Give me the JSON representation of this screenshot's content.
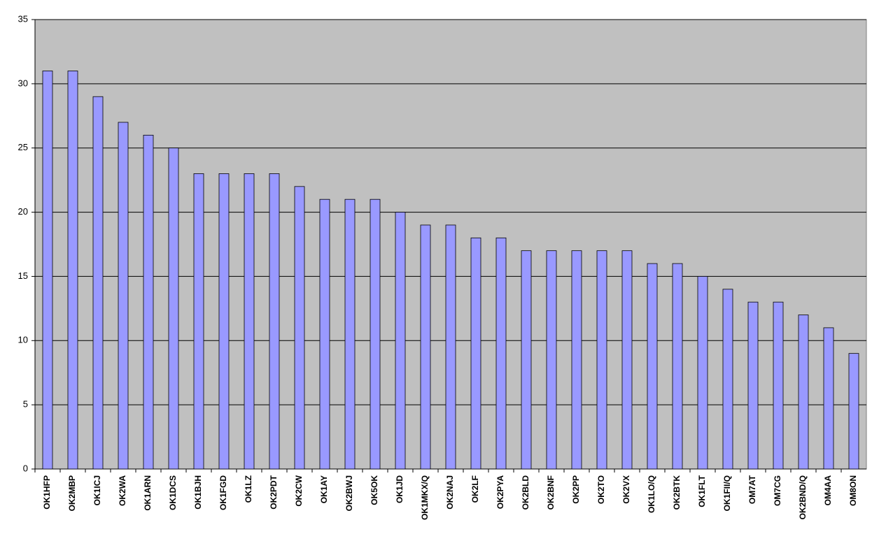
{
  "chart_data": {
    "type": "bar",
    "categories": [
      "OK1HFP",
      "OK2MBP",
      "OK1ICJ",
      "OK2WA",
      "OK1ARN",
      "OK1DCS",
      "OK1BJH",
      "OK1FGD",
      "OK1LZ",
      "OK2PDT",
      "OK2CW",
      "OK1AY",
      "OK2BWJ",
      "OK5OK",
      "OK1JD",
      "OK1MKX/Q",
      "OK2NAJ",
      "OK2LF",
      "OK2PYA",
      "OK2BLD",
      "OK2BNF",
      "OK2PP",
      "OK2TO",
      "OK2VX",
      "OK1LO/Q",
      "OK2BTK",
      "OK1FLT",
      "OK1FII/Q",
      "OM7AT",
      "OM7CG",
      "OK2BND/Q",
      "OM4AA",
      "OM8ON"
    ],
    "values": [
      31,
      31,
      29,
      27,
      26,
      25,
      23,
      23,
      23,
      23,
      22,
      21,
      21,
      21,
      20,
      19,
      19,
      18,
      18,
      17,
      17,
      17,
      17,
      17,
      16,
      16,
      15,
      14,
      13,
      13,
      12,
      11,
      9
    ],
    "color": "#9999ff",
    "ylim": [
      0,
      35
    ],
    "yticks": [
      0,
      5,
      10,
      15,
      20,
      25,
      30,
      35
    ],
    "grid": true
  }
}
